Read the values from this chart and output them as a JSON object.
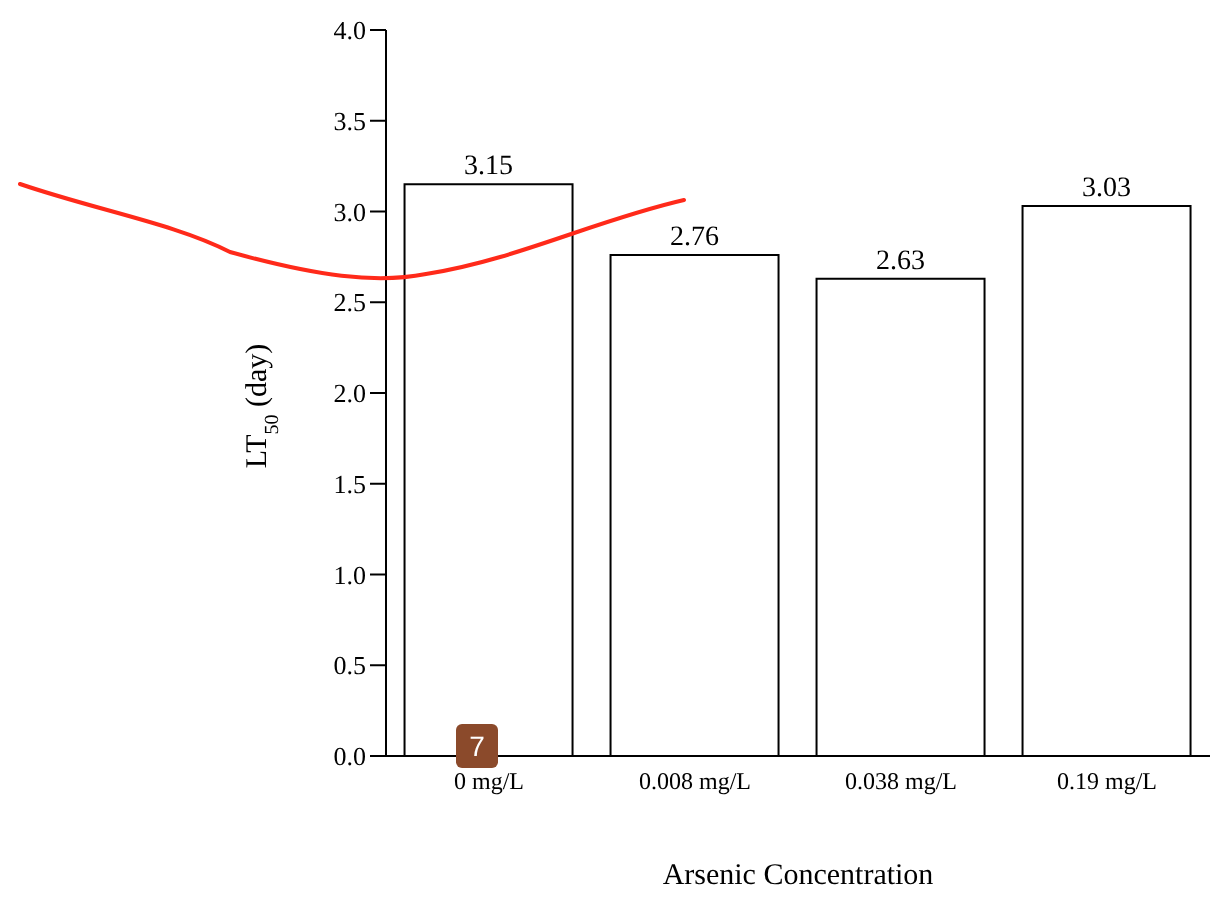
{
  "chart_data": {
    "type": "bar",
    "xlabel": "Arsenic Concentration",
    "ylabel": "LT$_{50}$ (day)",
    "categories": [
      "0 mg/L",
      "0.008 mg/L",
      "0.038 mg/L",
      "0.19 mg/L"
    ],
    "values": [
      3.15,
      2.76,
      2.63,
      3.03
    ],
    "color": "#ffffff",
    "ylim": [
      0,
      4
    ],
    "yticks": [
      {
        "value": 0,
        "label": "0.0"
      },
      {
        "value": 0.5,
        "label": "0.5"
      },
      {
        "value": 1,
        "label": "1.0"
      },
      {
        "value": 1.5,
        "label": "1.5"
      },
      {
        "value": 2,
        "label": "2.0"
      },
      {
        "value": 2.5,
        "label": "2.5"
      },
      {
        "value": 3,
        "label": "3.0"
      },
      {
        "value": 3.5,
        "label": "3.5"
      },
      {
        "value": 4,
        "label": "4.0"
      }
    ],
    "data_labels": true,
    "grid": false,
    "legend": false,
    "annotations": [
      "7"
    ]
  }
}
